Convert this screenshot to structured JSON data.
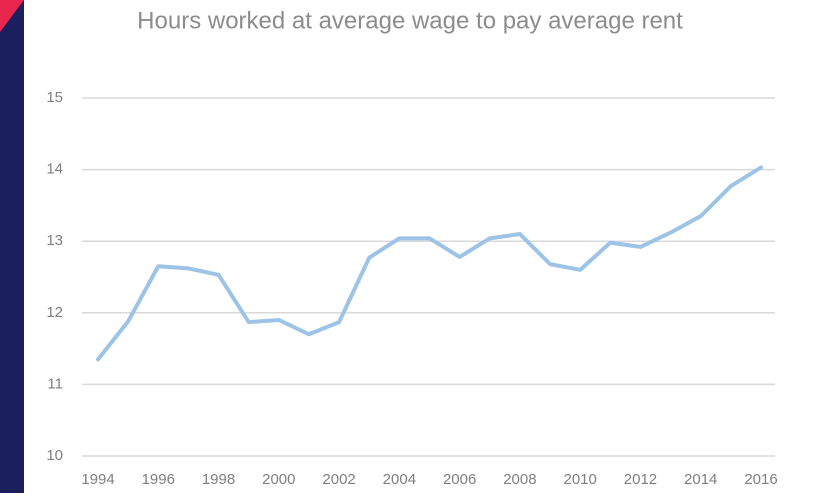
{
  "chart_data": {
    "type": "line",
    "title": "Hours worked at average wage to pay average rent",
    "x": [
      1994,
      1995,
      1996,
      1997,
      1998,
      1999,
      2000,
      2001,
      2002,
      2003,
      2004,
      2005,
      2006,
      2007,
      2008,
      2009,
      2010,
      2011,
      2012,
      2013,
      2014,
      2015,
      2016
    ],
    "series": [
      {
        "color": "#9dc3e6",
        "values": [
          11.35,
          11.88,
          12.65,
          12.62,
          12.53,
          11.87,
          11.9,
          11.7,
          11.87,
          12.77,
          13.04,
          13.04,
          12.78,
          13.04,
          13.1,
          12.68,
          12.6,
          12.98,
          12.92,
          13.12,
          13.35,
          13.77,
          14.03
        ]
      }
    ],
    "xlim": [
      1994,
      2016
    ],
    "xticks": [
      1994,
      1996,
      1998,
      2000,
      2002,
      2004,
      2006,
      2008,
      2010,
      2012,
      2014,
      2016
    ],
    "ylim": [
      10,
      15
    ],
    "yticks": [
      10,
      11,
      12,
      13,
      14,
      15
    ],
    "grid": true
  }
}
